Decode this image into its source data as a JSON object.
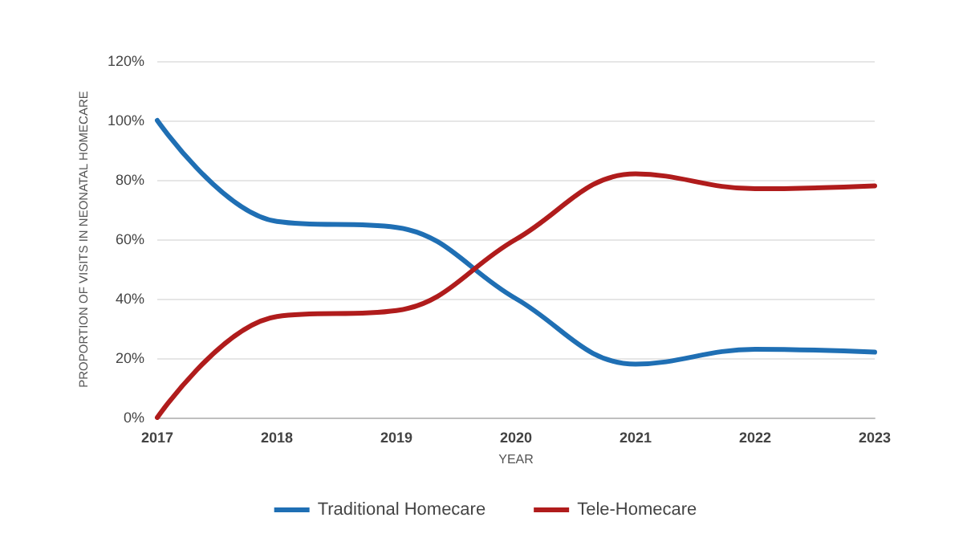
{
  "chart_data": {
    "type": "line",
    "xlabel": "YEAR",
    "ylabel": "PROPORTION OF VISITS IN NEONATAL HOMECARE",
    "categories": [
      "2017",
      "2018",
      "2019",
      "2020",
      "2021",
      "2022",
      "2023"
    ],
    "series": [
      {
        "name": "Traditional Homecare",
        "color": "#1f6fb4",
        "values": [
          100,
          66,
          64,
          40,
          18,
          23,
          22
        ]
      },
      {
        "name": "Tele-Homecare",
        "color": "#b01c1c",
        "values": [
          0,
          34,
          36,
          60,
          82,
          77,
          78
        ]
      }
    ],
    "ylim": [
      0,
      120
    ],
    "yticks": [
      {
        "value": 0,
        "label": "0%"
      },
      {
        "value": 20,
        "label": "20%"
      },
      {
        "value": 40,
        "label": "40%"
      },
      {
        "value": 60,
        "label": "60%"
      },
      {
        "value": 80,
        "label": "80%"
      },
      {
        "value": 100,
        "label": "100%"
      },
      {
        "value": 120,
        "label": "120%"
      }
    ],
    "grid": "y",
    "legend": "bottom",
    "marker": "none",
    "line_style": "solid"
  }
}
